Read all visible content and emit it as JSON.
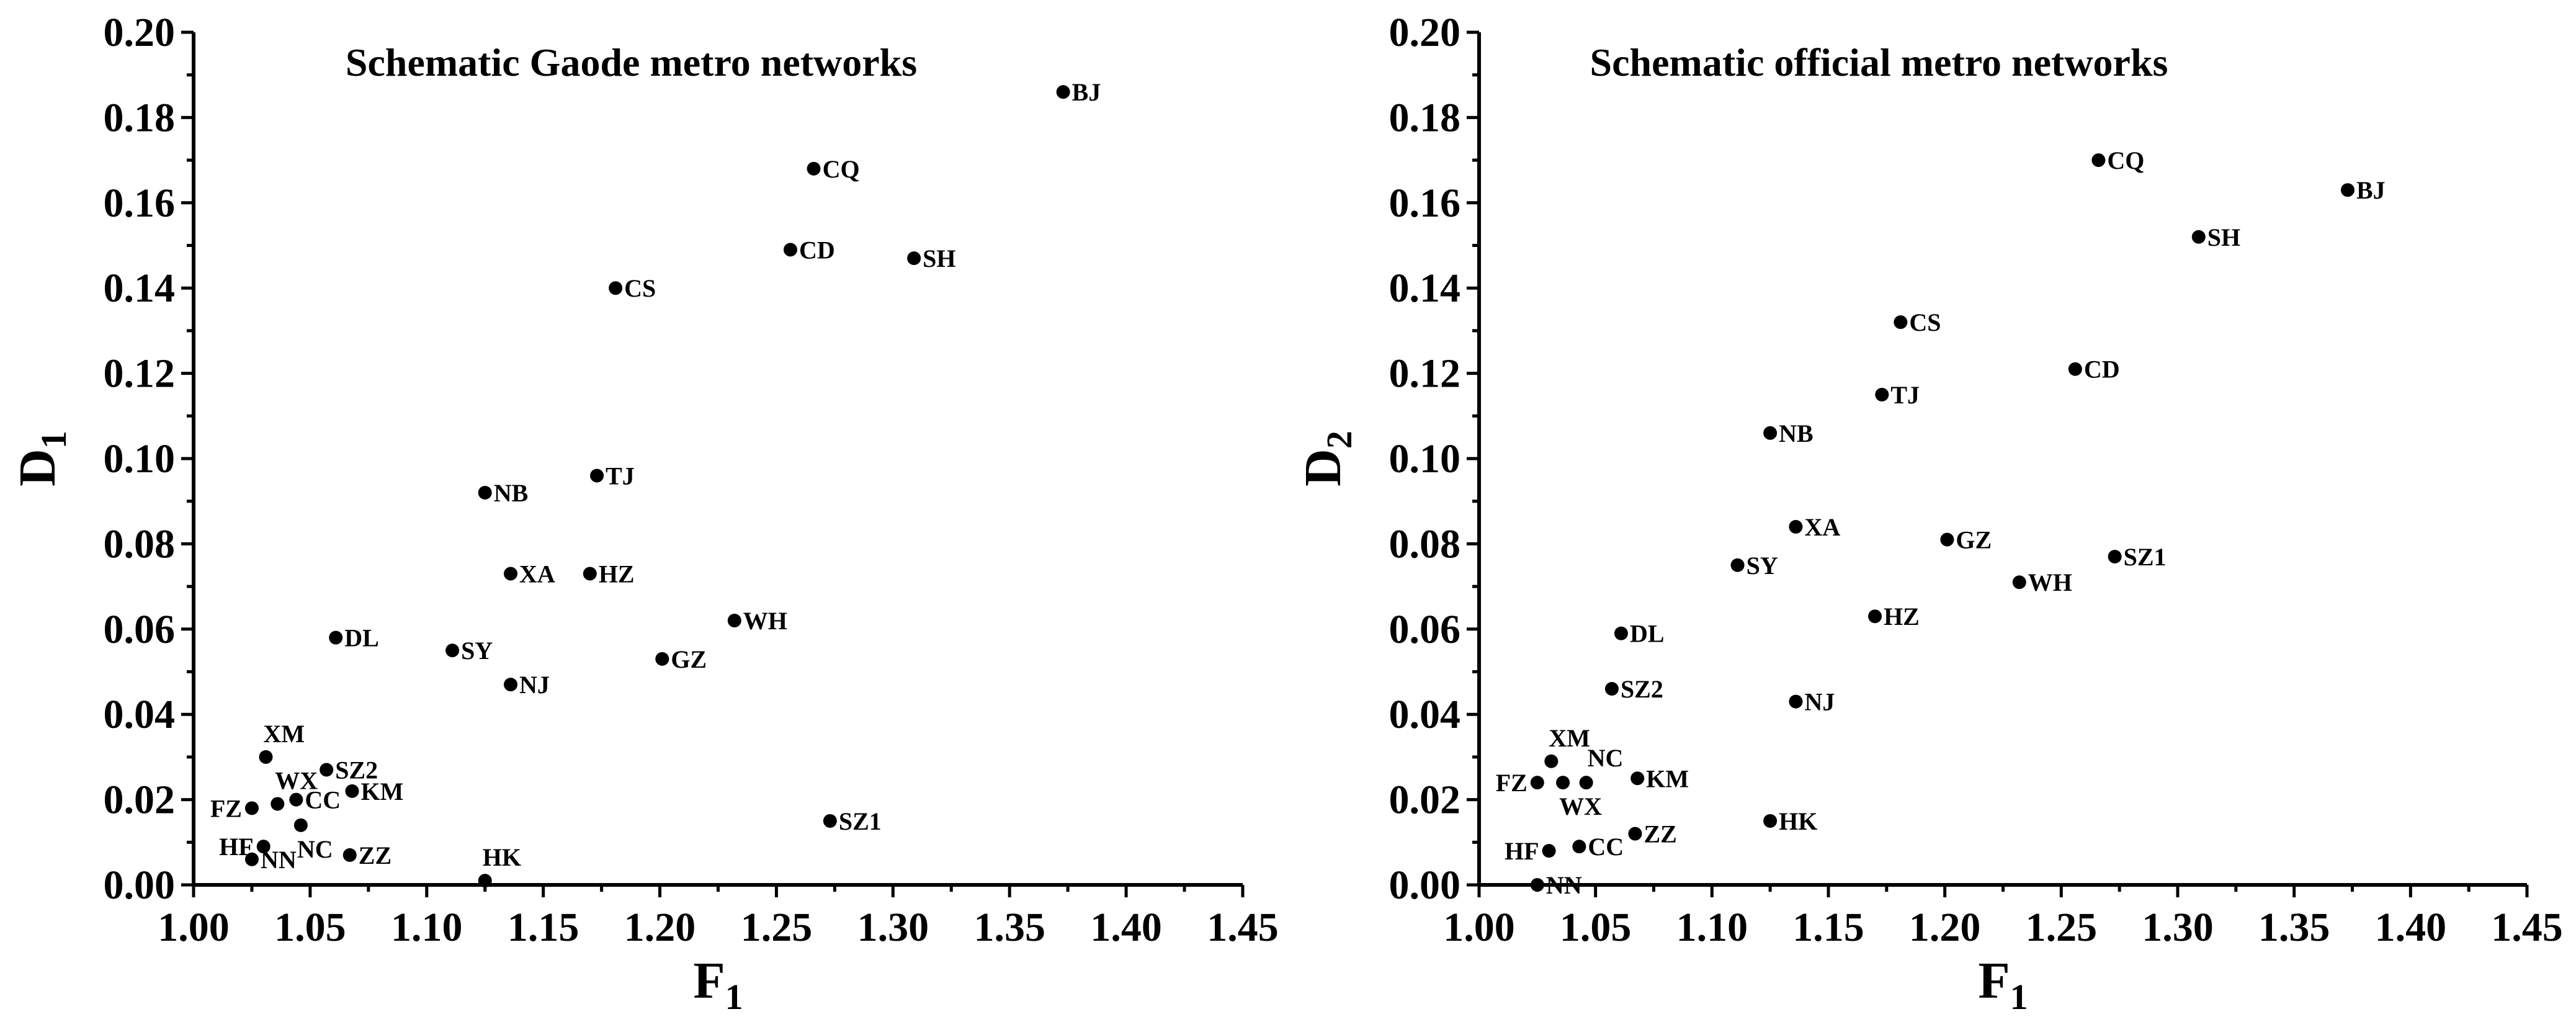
{
  "chart_data": [
    {
      "type": "scatter",
      "title": "Schematic Gaode metro networks",
      "xlabel": "F",
      "xlabel_sub": "1",
      "ylabel": "D",
      "ylabel_sub": "1",
      "xlim": [
        1.0,
        1.45
      ],
      "ylim": [
        0.0,
        0.2
      ],
      "xticks": [
        "1.00",
        "1.05",
        "1.10",
        "1.15",
        "1.20",
        "1.25",
        "1.30",
        "1.35",
        "1.40",
        "1.45"
      ],
      "yticks": [
        "0.00",
        "0.02",
        "0.04",
        "0.06",
        "0.08",
        "0.10",
        "0.12",
        "0.14",
        "0.16",
        "0.18",
        "0.20"
      ],
      "grid": false,
      "marker_color": "#000000",
      "points": [
        {
          "label": "BJ",
          "x": 1.373,
          "y": 0.186,
          "pos": "right"
        },
        {
          "label": "CQ",
          "x": 1.266,
          "y": 0.168,
          "pos": "right"
        },
        {
          "label": "CD",
          "x": 1.256,
          "y": 0.149,
          "pos": "right"
        },
        {
          "label": "SH",
          "x": 1.309,
          "y": 0.147,
          "pos": "right"
        },
        {
          "label": "CS",
          "x": 1.181,
          "y": 0.14,
          "pos": "right"
        },
        {
          "label": "TJ",
          "x": 1.173,
          "y": 0.096,
          "pos": "right"
        },
        {
          "label": "NB",
          "x": 1.125,
          "y": 0.092,
          "pos": "right"
        },
        {
          "label": "XA",
          "x": 1.136,
          "y": 0.073,
          "pos": "right"
        },
        {
          "label": "HZ",
          "x": 1.17,
          "y": 0.073,
          "pos": "right"
        },
        {
          "label": "WH",
          "x": 1.232,
          "y": 0.062,
          "pos": "right"
        },
        {
          "label": "DL",
          "x": 1.061,
          "y": 0.058,
          "pos": "right"
        },
        {
          "label": "SY",
          "x": 1.111,
          "y": 0.055,
          "pos": "right"
        },
        {
          "label": "GZ",
          "x": 1.201,
          "y": 0.053,
          "pos": "right"
        },
        {
          "label": "NJ",
          "x": 1.136,
          "y": 0.047,
          "pos": "right"
        },
        {
          "label": "XM",
          "x": 1.031,
          "y": 0.03,
          "pos": "above"
        },
        {
          "label": "SZ2",
          "x": 1.057,
          "y": 0.027,
          "pos": "right"
        },
        {
          "label": "KM",
          "x": 1.068,
          "y": 0.022,
          "pos": "right"
        },
        {
          "label": "WX",
          "x": 1.036,
          "y": 0.019,
          "pos": "above"
        },
        {
          "label": "CC",
          "x": 1.044,
          "y": 0.02,
          "pos": "right"
        },
        {
          "label": "FZ",
          "x": 1.025,
          "y": 0.018,
          "pos": "left"
        },
        {
          "label": "NC",
          "x": 1.046,
          "y": 0.014,
          "pos": "below"
        },
        {
          "label": "HF",
          "x": 1.03,
          "y": 0.009,
          "pos": "left"
        },
        {
          "label": "ZZ",
          "x": 1.067,
          "y": 0.007,
          "pos": "right"
        },
        {
          "label": "NN",
          "x": 1.025,
          "y": 0.006,
          "pos": "right"
        },
        {
          "label": "SZ1",
          "x": 1.273,
          "y": 0.015,
          "pos": "right"
        },
        {
          "label": "HK",
          "x": 1.125,
          "y": 0.001,
          "pos": "above"
        }
      ]
    },
    {
      "type": "scatter",
      "title": "Schematic official metro networks",
      "xlabel": "F",
      "xlabel_sub": "1",
      "ylabel": "D",
      "ylabel_sub": "2",
      "xlim": [
        1.0,
        1.45
      ],
      "ylim": [
        0.0,
        0.2
      ],
      "xticks": [
        "1.00",
        "1.05",
        "1.10",
        "1.15",
        "1.20",
        "1.25",
        "1.30",
        "1.35",
        "1.40",
        "1.45"
      ],
      "yticks": [
        "0.00",
        "0.02",
        "0.04",
        "0.06",
        "0.08",
        "0.10",
        "0.12",
        "0.14",
        "0.16",
        "0.18",
        "0.20"
      ],
      "grid": false,
      "marker_color": "#000000",
      "points": [
        {
          "label": "CQ",
          "x": 1.266,
          "y": 0.17,
          "pos": "right"
        },
        {
          "label": "BJ",
          "x": 1.373,
          "y": 0.163,
          "pos": "right"
        },
        {
          "label": "SH",
          "x": 1.309,
          "y": 0.152,
          "pos": "right"
        },
        {
          "label": "CS",
          "x": 1.181,
          "y": 0.132,
          "pos": "right"
        },
        {
          "label": "CD",
          "x": 1.256,
          "y": 0.121,
          "pos": "right"
        },
        {
          "label": "TJ",
          "x": 1.173,
          "y": 0.115,
          "pos": "right"
        },
        {
          "label": "NB",
          "x": 1.125,
          "y": 0.106,
          "pos": "right"
        },
        {
          "label": "XA",
          "x": 1.136,
          "y": 0.084,
          "pos": "right"
        },
        {
          "label": "GZ",
          "x": 1.201,
          "y": 0.081,
          "pos": "right"
        },
        {
          "label": "SZ1",
          "x": 1.273,
          "y": 0.077,
          "pos": "right"
        },
        {
          "label": "SY",
          "x": 1.111,
          "y": 0.075,
          "pos": "right"
        },
        {
          "label": "WH",
          "x": 1.232,
          "y": 0.071,
          "pos": "right"
        },
        {
          "label": "HZ",
          "x": 1.17,
          "y": 0.063,
          "pos": "right"
        },
        {
          "label": "DL",
          "x": 1.061,
          "y": 0.059,
          "pos": "right"
        },
        {
          "label": "SZ2",
          "x": 1.057,
          "y": 0.046,
          "pos": "right"
        },
        {
          "label": "NJ",
          "x": 1.136,
          "y": 0.043,
          "pos": "right"
        },
        {
          "label": "XM",
          "x": 1.031,
          "y": 0.029,
          "pos": "above"
        },
        {
          "label": "NC",
          "x": 1.046,
          "y": 0.024,
          "pos": "above-right"
        },
        {
          "label": "KM",
          "x": 1.068,
          "y": 0.025,
          "pos": "right"
        },
        {
          "label": "FZ",
          "x": 1.025,
          "y": 0.024,
          "pos": "left"
        },
        {
          "label": "WX",
          "x": 1.036,
          "y": 0.024,
          "pos": "below"
        },
        {
          "label": "HK",
          "x": 1.125,
          "y": 0.015,
          "pos": "right"
        },
        {
          "label": "ZZ",
          "x": 1.067,
          "y": 0.012,
          "pos": "right"
        },
        {
          "label": "HF",
          "x": 1.03,
          "y": 0.008,
          "pos": "left"
        },
        {
          "label": "CC",
          "x": 1.043,
          "y": 0.009,
          "pos": "right"
        },
        {
          "label": "NN",
          "x": 1.025,
          "y": 0.0,
          "pos": "right"
        }
      ]
    }
  ]
}
